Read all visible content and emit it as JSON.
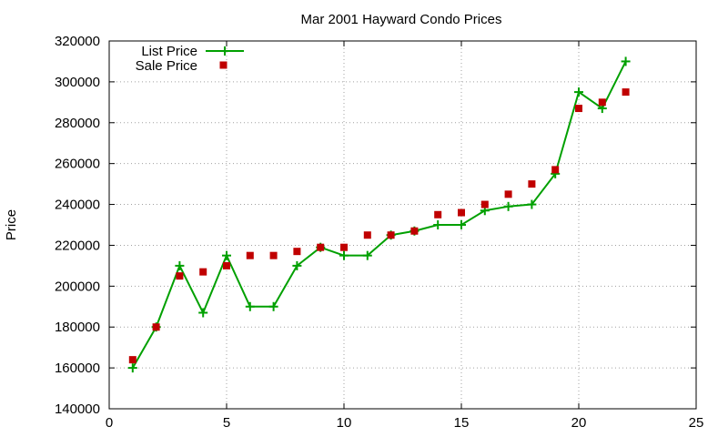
{
  "chart_data": {
    "type": "line",
    "title": "Mar 2001 Hayward Condo Prices",
    "xlabel": "",
    "ylabel": "Price",
    "xlim": [
      0,
      25
    ],
    "ylim": [
      140000,
      320000
    ],
    "xticks": [
      0,
      5,
      10,
      15,
      20,
      25
    ],
    "yticks": [
      140000,
      160000,
      180000,
      200000,
      220000,
      240000,
      260000,
      280000,
      300000,
      320000
    ],
    "grid": true,
    "legend_position": "top-left",
    "series": [
      {
        "name": "List Price",
        "style": "line-with-plus-markers",
        "color": "#00a000",
        "x": [
          1,
          2,
          3,
          4,
          5,
          6,
          7,
          8,
          9,
          10,
          11,
          12,
          13,
          14,
          15,
          16,
          17,
          18,
          19,
          20,
          21,
          22
        ],
        "y": [
          160000,
          180000,
          210000,
          187000,
          215000,
          190000,
          190000,
          210000,
          219000,
          215000,
          215000,
          225000,
          227000,
          230000,
          230000,
          237000,
          239000,
          240000,
          255000,
          295000,
          287000,
          310000
        ]
      },
      {
        "name": "Sale Price",
        "style": "square-markers",
        "color": "#c00000",
        "x": [
          1,
          2,
          3,
          4,
          5,
          6,
          7,
          8,
          9,
          10,
          11,
          12,
          13,
          14,
          15,
          16,
          17,
          18,
          19,
          20,
          21,
          22
        ],
        "y": [
          164000,
          180000,
          205000,
          207000,
          210000,
          215000,
          215000,
          217000,
          219000,
          219000,
          225000,
          225000,
          227000,
          235000,
          236000,
          240000,
          245000,
          250000,
          257000,
          287000,
          290000,
          295000
        ]
      }
    ]
  }
}
